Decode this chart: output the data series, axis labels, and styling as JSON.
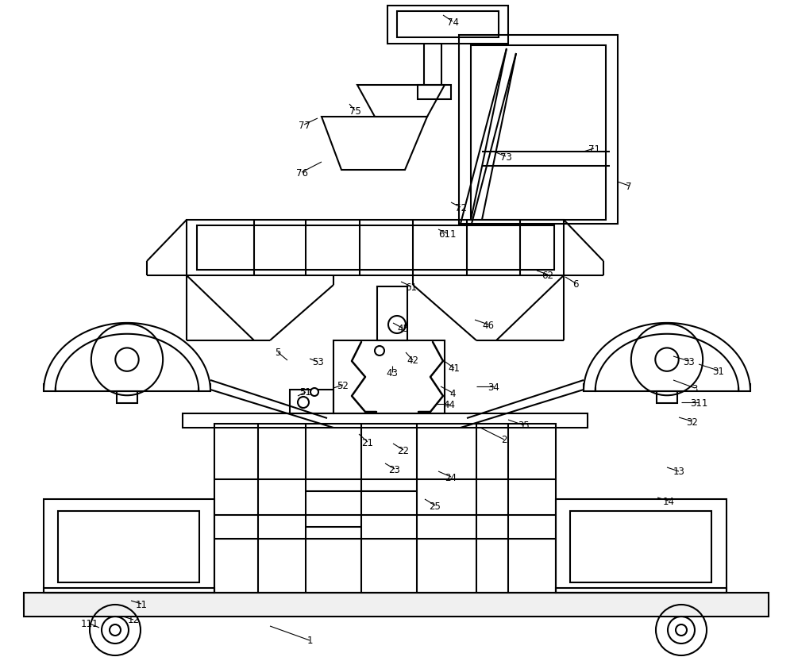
{
  "bg": "#ffffff",
  "lc": "#000000",
  "lw": 1.5,
  "fig_w": 10.0,
  "fig_h": 8.29,
  "dpi": 100,
  "labels": [
    [
      "1",
      390,
      808
    ],
    [
      "2",
      635,
      555
    ],
    [
      "3",
      875,
      490
    ],
    [
      "31",
      905,
      468
    ],
    [
      "311",
      880,
      508
    ],
    [
      "32",
      872,
      532
    ],
    [
      "33",
      868,
      456
    ],
    [
      "34",
      622,
      488
    ],
    [
      "35",
      660,
      537
    ],
    [
      "4",
      570,
      496
    ],
    [
      "41",
      572,
      465
    ],
    [
      "42",
      520,
      455
    ],
    [
      "43",
      494,
      470
    ],
    [
      "44",
      566,
      510
    ],
    [
      "45",
      508,
      415
    ],
    [
      "46",
      615,
      410
    ],
    [
      "5",
      350,
      445
    ],
    [
      "51",
      385,
      495
    ],
    [
      "52",
      432,
      486
    ],
    [
      "53",
      400,
      457
    ],
    [
      "6",
      725,
      358
    ],
    [
      "61",
      518,
      362
    ],
    [
      "62",
      690,
      347
    ],
    [
      "611",
      563,
      295
    ],
    [
      "7",
      792,
      235
    ],
    [
      "71",
      748,
      188
    ],
    [
      "72",
      580,
      262
    ],
    [
      "73",
      637,
      198
    ],
    [
      "74",
      570,
      28
    ],
    [
      "75",
      447,
      140
    ],
    [
      "76",
      380,
      218
    ],
    [
      "77",
      383,
      158
    ],
    [
      "13",
      855,
      595
    ],
    [
      "14",
      842,
      632
    ],
    [
      "21",
      463,
      558
    ],
    [
      "22",
      508,
      568
    ],
    [
      "23",
      497,
      592
    ],
    [
      "24",
      568,
      602
    ],
    [
      "25",
      548,
      638
    ],
    [
      "11",
      178,
      762
    ],
    [
      "12",
      168,
      782
    ],
    [
      "111",
      113,
      787
    ]
  ]
}
